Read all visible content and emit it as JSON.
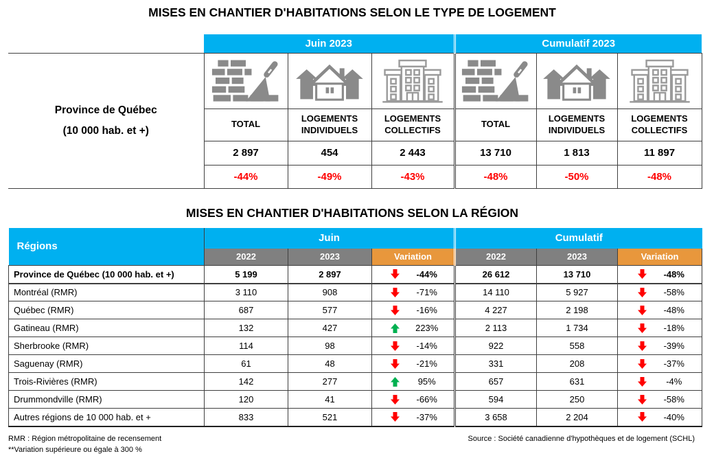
{
  "table1": {
    "title": "MISES EN CHANTIER D'HABITATIONS SELON LE TYPE DE LOGEMENT",
    "row_label_line1": "Province de Québec",
    "row_label_line2": "(10 000 hab. et +)",
    "groups": [
      {
        "label": "Juin 2023",
        "columns": [
          {
            "icon": "bricks-trowel-icon",
            "label": "TOTAL",
            "value": "2 897",
            "variation": "-44%"
          },
          {
            "icon": "single-house-icon",
            "label": "LOGEMENTS INDIVIDUELS",
            "value": "454",
            "variation": "-49%"
          },
          {
            "icon": "apartment-building-icon",
            "label": "LOGEMENTS COLLECTIFS",
            "value": "2 443",
            "variation": "-43%"
          }
        ]
      },
      {
        "label": "Cumulatif 2023",
        "columns": [
          {
            "icon": "bricks-trowel-icon",
            "label": "TOTAL",
            "value": "13 710",
            "variation": "-48%"
          },
          {
            "icon": "single-house-icon",
            "label": "LOGEMENTS INDIVIDUELS",
            "value": "1 813",
            "variation": "-50%"
          },
          {
            "icon": "apartment-building-icon",
            "label": "LOGEMENTS COLLECTIFS",
            "value": "11 897",
            "variation": "-48%"
          }
        ]
      }
    ]
  },
  "table2": {
    "title": "MISES EN CHANTIER D'HABITATIONS SELON LA RÉGION",
    "regions_header": "Régions",
    "group_headers": [
      "Juin",
      "Cumulatif"
    ],
    "sub_headers": [
      "2022",
      "2023",
      "Variation"
    ],
    "rows": [
      {
        "region": "Province de Québec (10 000 hab. et +)",
        "bold": true,
        "juin_2022": "5 199",
        "juin_2023": "2 897",
        "juin_dir": "down",
        "juin_var": "-44%",
        "cum_2022": "26 612",
        "cum_2023": "13 710",
        "cum_dir": "down",
        "cum_var": "-48%"
      },
      {
        "region": "Montréal (RMR)",
        "bold": false,
        "juin_2022": "3 110",
        "juin_2023": "908",
        "juin_dir": "down",
        "juin_var": "-71%",
        "cum_2022": "14 110",
        "cum_2023": "5 927",
        "cum_dir": "down",
        "cum_var": "-58%"
      },
      {
        "region": "Québec (RMR)",
        "bold": false,
        "juin_2022": "687",
        "juin_2023": "577",
        "juin_dir": "down",
        "juin_var": "-16%",
        "cum_2022": "4 227",
        "cum_2023": "2 198",
        "cum_dir": "down",
        "cum_var": "-48%"
      },
      {
        "region": "Gatineau (RMR)",
        "bold": false,
        "juin_2022": "132",
        "juin_2023": "427",
        "juin_dir": "up",
        "juin_var": "223%",
        "cum_2022": "2 113",
        "cum_2023": "1 734",
        "cum_dir": "down",
        "cum_var": "-18%"
      },
      {
        "region": "Sherbrooke (RMR)",
        "bold": false,
        "juin_2022": "114",
        "juin_2023": "98",
        "juin_dir": "down",
        "juin_var": "-14%",
        "cum_2022": "922",
        "cum_2023": "558",
        "cum_dir": "down",
        "cum_var": "-39%"
      },
      {
        "region": "Saguenay (RMR)",
        "bold": false,
        "juin_2022": "61",
        "juin_2023": "48",
        "juin_dir": "down",
        "juin_var": "-21%",
        "cum_2022": "331",
        "cum_2023": "208",
        "cum_dir": "down",
        "cum_var": "-37%"
      },
      {
        "region": "Trois-Rivières (RMR)",
        "bold": false,
        "juin_2022": "142",
        "juin_2023": "277",
        "juin_dir": "up",
        "juin_var": "95%",
        "cum_2022": "657",
        "cum_2023": "631",
        "cum_dir": "down",
        "cum_var": "-4%"
      },
      {
        "region": "Drummondville (RMR)",
        "bold": false,
        "juin_2022": "120",
        "juin_2023": "41",
        "juin_dir": "down",
        "juin_var": "-66%",
        "cum_2022": "594",
        "cum_2023": "250",
        "cum_dir": "down",
        "cum_var": "-58%"
      },
      {
        "region": "Autres régions de 10 000  hab. et +",
        "bold": false,
        "juin_2022": "833",
        "juin_2023": "521",
        "juin_dir": "down",
        "juin_var": "-37%",
        "cum_2022": "3 658",
        "cum_2023": "2 204",
        "cum_dir": "down",
        "cum_var": "-40%"
      }
    ]
  },
  "footer": {
    "note1": "RMR : Région métropolitaine de recensement",
    "note2": "**Variation supérieure ou égale à 300 %",
    "source": "Source : Société canadienne d'hypothèques et de logement (SCHL)"
  },
  "colors": {
    "cyan": "#00B0F0",
    "gray": "#808080",
    "orange": "#E8973C",
    "red": "#FF0000",
    "green": "#00B050",
    "icon_gray": "#8a8a8a"
  }
}
